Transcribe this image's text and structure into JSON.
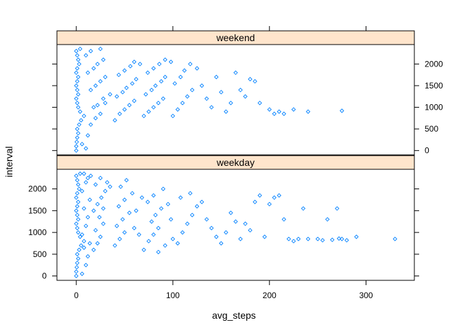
{
  "chart_data": {
    "type": "scatter",
    "layout": "lattice panels stacked vertically, shared axes",
    "xlabel": "avg_steps",
    "ylabel": "interval",
    "xlim": [
      -20,
      350
    ],
    "ylim": [
      -100,
      2450
    ],
    "x_ticks": [
      0,
      100,
      200,
      300
    ],
    "y_ticks": [
      0,
      500,
      1000,
      1500,
      2000
    ],
    "marker": "open diamond",
    "colors": {
      "points": "#0080ff",
      "strip_bg": "#ffe5cc",
      "frame": "#000000"
    },
    "panels": [
      {
        "name": "weekend",
        "position": "top",
        "y_axis_side": "right",
        "points": [
          [
            0,
            0
          ],
          [
            0,
            100
          ],
          [
            0.5,
            200
          ],
          [
            1,
            300
          ],
          [
            2,
            400
          ],
          [
            1,
            500
          ],
          [
            3,
            600
          ],
          [
            5,
            700
          ],
          [
            8,
            800
          ],
          [
            4,
            900
          ],
          [
            2,
            1000
          ],
          [
            1,
            1100
          ],
          [
            0,
            1200
          ],
          [
            2,
            1300
          ],
          [
            1,
            1400
          ],
          [
            0,
            1500
          ],
          [
            1,
            1600
          ],
          [
            2,
            1700
          ],
          [
            0,
            1800
          ],
          [
            1,
            1900
          ],
          [
            3,
            2000
          ],
          [
            2,
            2100
          ],
          [
            1,
            2200
          ],
          [
            0,
            2300
          ],
          [
            4,
            2350
          ],
          [
            10,
            50
          ],
          [
            6,
            150
          ],
          [
            12,
            350
          ],
          [
            15,
            600
          ],
          [
            20,
            750
          ],
          [
            25,
            850
          ],
          [
            18,
            1000
          ],
          [
            22,
            1050
          ],
          [
            30,
            1100
          ],
          [
            28,
            1200
          ],
          [
            35,
            1300
          ],
          [
            15,
            1400
          ],
          [
            20,
            1500
          ],
          [
            25,
            1600
          ],
          [
            30,
            1700
          ],
          [
            12,
            1800
          ],
          [
            18,
            1900
          ],
          [
            22,
            2000
          ],
          [
            28,
            2100
          ],
          [
            10,
            2200
          ],
          [
            15,
            2300
          ],
          [
            25,
            2350
          ],
          [
            40,
            700
          ],
          [
            45,
            850
          ],
          [
            50,
            950
          ],
          [
            55,
            1050
          ],
          [
            60,
            1150
          ],
          [
            42,
            1250
          ],
          [
            48,
            1350
          ],
          [
            52,
            1450
          ],
          [
            58,
            1550
          ],
          [
            62,
            1650
          ],
          [
            44,
            1750
          ],
          [
            50,
            1850
          ],
          [
            56,
            1950
          ],
          [
            60,
            2050
          ],
          [
            66,
            2000
          ],
          [
            70,
            800
          ],
          [
            75,
            900
          ],
          [
            80,
            1000
          ],
          [
            85,
            1100
          ],
          [
            90,
            1200
          ],
          [
            72,
            1300
          ],
          [
            78,
            1400
          ],
          [
            82,
            1500
          ],
          [
            88,
            1600
          ],
          [
            92,
            1700
          ],
          [
            74,
            1800
          ],
          [
            80,
            1900
          ],
          [
            86,
            2000
          ],
          [
            92,
            2100
          ],
          [
            98,
            2050
          ],
          [
            100,
            800
          ],
          [
            105,
            950
          ],
          [
            110,
            1100
          ],
          [
            115,
            1250
          ],
          [
            120,
            1400
          ],
          [
            102,
            1550
          ],
          [
            108,
            1700
          ],
          [
            112,
            1850
          ],
          [
            118,
            2000
          ],
          [
            125,
            1900
          ],
          [
            130,
            1500
          ],
          [
            135,
            1200
          ],
          [
            140,
            1000
          ],
          [
            145,
            1700
          ],
          [
            150,
            1350
          ],
          [
            155,
            900
          ],
          [
            160,
            1100
          ],
          [
            165,
            1800
          ],
          [
            170,
            1400
          ],
          [
            175,
            1250
          ],
          [
            180,
            1650
          ],
          [
            185,
            1600
          ],
          [
            190,
            1100
          ],
          [
            200,
            950
          ],
          [
            205,
            850
          ],
          [
            210,
            900
          ],
          [
            215,
            850
          ],
          [
            225,
            950
          ],
          [
            240,
            900
          ],
          [
            275,
            920
          ]
        ]
      },
      {
        "name": "weekday",
        "position": "bottom",
        "y_axis_side": "left",
        "points": [
          [
            0,
            0
          ],
          [
            0,
            100
          ],
          [
            0.5,
            200
          ],
          [
            1,
            300
          ],
          [
            2,
            400
          ],
          [
            1,
            500
          ],
          [
            3,
            600
          ],
          [
            5,
            700
          ],
          [
            8,
            800
          ],
          [
            4,
            900
          ],
          [
            2,
            1000
          ],
          [
            1,
            1100
          ],
          [
            0,
            1200
          ],
          [
            2,
            1300
          ],
          [
            1,
            1400
          ],
          [
            0,
            1500
          ],
          [
            1,
            1600
          ],
          [
            2,
            1700
          ],
          [
            0,
            1800
          ],
          [
            1,
            1900
          ],
          [
            3,
            2000
          ],
          [
            2,
            2100
          ],
          [
            1,
            2200
          ],
          [
            0,
            2300
          ],
          [
            4,
            2350
          ],
          [
            6,
            50
          ],
          [
            10,
            250
          ],
          [
            12,
            450
          ],
          [
            8,
            650
          ],
          [
            14,
            750
          ],
          [
            6,
            950
          ],
          [
            10,
            1150
          ],
          [
            12,
            1350
          ],
          [
            8,
            1550
          ],
          [
            14,
            1750
          ],
          [
            6,
            1950
          ],
          [
            10,
            2150
          ],
          [
            12,
            2250
          ],
          [
            8,
            2350
          ],
          [
            15,
            2300
          ],
          [
            18,
            600
          ],
          [
            22,
            750
          ],
          [
            25,
            900
          ],
          [
            20,
            1050
          ],
          [
            28,
            1200
          ],
          [
            24,
            1350
          ],
          [
            18,
            1500
          ],
          [
            22,
            1650
          ],
          [
            26,
            1800
          ],
          [
            30,
            1950
          ],
          [
            20,
            2100
          ],
          [
            25,
            2250
          ],
          [
            32,
            2150
          ],
          [
            35,
            2050
          ],
          [
            28,
            1550
          ],
          [
            40,
            700
          ],
          [
            45,
            850
          ],
          [
            50,
            1000
          ],
          [
            42,
            1150
          ],
          [
            48,
            1300
          ],
          [
            55,
            1450
          ],
          [
            44,
            1600
          ],
          [
            50,
            1750
          ],
          [
            58,
            1900
          ],
          [
            46,
            2050
          ],
          [
            52,
            2200
          ],
          [
            60,
            1100
          ],
          [
            62,
            1500
          ],
          [
            65,
            950
          ],
          [
            68,
            1800
          ],
          [
            70,
            600
          ],
          [
            75,
            800
          ],
          [
            80,
            950
          ],
          [
            85,
            1100
          ],
          [
            78,
            1250
          ],
          [
            82,
            1400
          ],
          [
            88,
            1550
          ],
          [
            74,
            1700
          ],
          [
            80,
            1850
          ],
          [
            90,
            2000
          ],
          [
            95,
            1650
          ],
          [
            98,
            1300
          ],
          [
            85,
            550
          ],
          [
            92,
            700
          ],
          [
            100,
            850
          ],
          [
            105,
            750
          ],
          [
            110,
            1000
          ],
          [
            115,
            1200
          ],
          [
            120,
            1400
          ],
          [
            125,
            1600
          ],
          [
            108,
            1800
          ],
          [
            118,
            1900
          ],
          [
            130,
            1700
          ],
          [
            135,
            1300
          ],
          [
            140,
            1100
          ],
          [
            145,
            900
          ],
          [
            150,
            750
          ],
          [
            155,
            1000
          ],
          [
            160,
            1450
          ],
          [
            165,
            1250
          ],
          [
            170,
            850
          ],
          [
            175,
            1200
          ],
          [
            180,
            1050
          ],
          [
            185,
            1700
          ],
          [
            190,
            1850
          ],
          [
            195,
            900
          ],
          [
            200,
            1650
          ],
          [
            205,
            1800
          ],
          [
            210,
            1850
          ],
          [
            215,
            1300
          ],
          [
            220,
            850
          ],
          [
            225,
            800
          ],
          [
            230,
            850
          ],
          [
            235,
            1550
          ],
          [
            240,
            850
          ],
          [
            250,
            850
          ],
          [
            255,
            820
          ],
          [
            260,
            1300
          ],
          [
            265,
            830
          ],
          [
            270,
            1550
          ],
          [
            272,
            860
          ],
          [
            275,
            850
          ],
          [
            280,
            820
          ],
          [
            290,
            900
          ],
          [
            330,
            850
          ]
        ]
      }
    ]
  }
}
